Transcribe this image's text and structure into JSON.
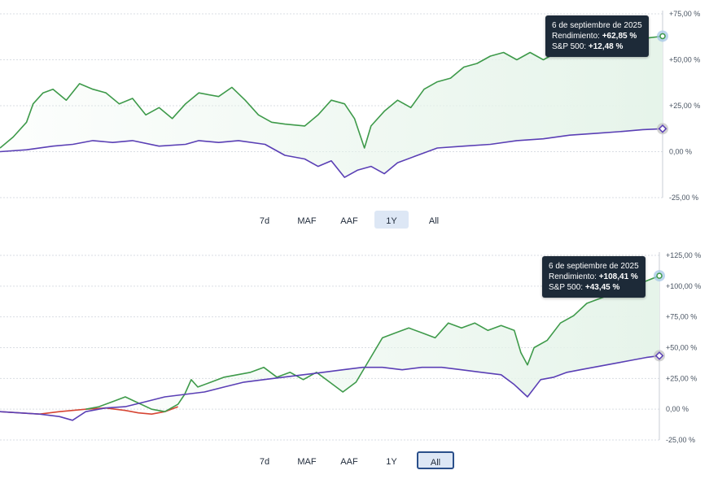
{
  "colors": {
    "portfolio": "#3e9a4a",
    "portfolio_negative": "#d64533",
    "benchmark": "#5a3fb5",
    "fill": "#e6f4ea",
    "grid": "#d9dde3",
    "tooltip_bg": "#1d2a38",
    "marker_portfolio": "#9fc3e6",
    "marker_benchmark": "#bfbfbf"
  },
  "chart_data": [
    {
      "type": "line",
      "x_range": [
        "2024-09-06",
        "2025-09-06"
      ],
      "ylim": [
        -25,
        75
      ],
      "yticks": [
        -25,
        0,
        25,
        50,
        75
      ],
      "ytick_labels": [
        "-25,00 %",
        "0,00 %",
        "+25,00 %",
        "+50,00 %",
        "+75,00 %"
      ],
      "grid": true,
      "series": [
        {
          "key": "portfolio",
          "points": [
            [
              0,
              2
            ],
            [
              0.02,
              8
            ],
            [
              0.04,
              16
            ],
            [
              0.05,
              26
            ],
            [
              0.065,
              32
            ],
            [
              0.08,
              34
            ],
            [
              0.1,
              28
            ],
            [
              0.12,
              37
            ],
            [
              0.14,
              34
            ],
            [
              0.16,
              32
            ],
            [
              0.18,
              26
            ],
            [
              0.2,
              29
            ],
            [
              0.22,
              20
            ],
            [
              0.24,
              24
            ],
            [
              0.26,
              18
            ],
            [
              0.28,
              26
            ],
            [
              0.3,
              32
            ],
            [
              0.33,
              30
            ],
            [
              0.35,
              35
            ],
            [
              0.37,
              28
            ],
            [
              0.39,
              20
            ],
            [
              0.41,
              16
            ],
            [
              0.43,
              15
            ],
            [
              0.46,
              14
            ],
            [
              0.48,
              20
            ],
            [
              0.5,
              28
            ],
            [
              0.52,
              26
            ],
            [
              0.535,
              18
            ],
            [
              0.55,
              2
            ],
            [
              0.56,
              14
            ],
            [
              0.58,
              22
            ],
            [
              0.6,
              28
            ],
            [
              0.62,
              24
            ],
            [
              0.64,
              34
            ],
            [
              0.66,
              38
            ],
            [
              0.68,
              40
            ],
            [
              0.7,
              46
            ],
            [
              0.72,
              48
            ],
            [
              0.74,
              52
            ],
            [
              0.76,
              54
            ],
            [
              0.78,
              50
            ],
            [
              0.8,
              54
            ],
            [
              0.82,
              50
            ],
            [
              0.84,
              54
            ],
            [
              0.86,
              52
            ],
            [
              0.88,
              56
            ],
            [
              0.9,
              58
            ],
            [
              0.92,
              60
            ],
            [
              0.94,
              58
            ],
            [
              0.96,
              60
            ],
            [
              0.98,
              62
            ],
            [
              1,
              62.85
            ]
          ]
        },
        {
          "key": "benchmark",
          "points": [
            [
              0,
              0
            ],
            [
              0.04,
              1
            ],
            [
              0.08,
              3
            ],
            [
              0.11,
              4
            ],
            [
              0.14,
              6
            ],
            [
              0.17,
              5
            ],
            [
              0.2,
              6
            ],
            [
              0.24,
              3
            ],
            [
              0.28,
              4
            ],
            [
              0.3,
              6
            ],
            [
              0.33,
              5
            ],
            [
              0.36,
              6
            ],
            [
              0.4,
              4
            ],
            [
              0.43,
              -2
            ],
            [
              0.46,
              -4
            ],
            [
              0.48,
              -8
            ],
            [
              0.5,
              -5
            ],
            [
              0.52,
              -14
            ],
            [
              0.54,
              -10
            ],
            [
              0.56,
              -8
            ],
            [
              0.58,
              -12
            ],
            [
              0.6,
              -6
            ],
            [
              0.63,
              -2
            ],
            [
              0.66,
              2
            ],
            [
              0.7,
              3
            ],
            [
              0.74,
              4
            ],
            [
              0.78,
              6
            ],
            [
              0.82,
              7
            ],
            [
              0.86,
              9
            ],
            [
              0.9,
              10
            ],
            [
              0.94,
              11
            ],
            [
              0.97,
              12
            ],
            [
              1,
              12.48
            ]
          ]
        }
      ],
      "tooltip": {
        "date": "6 de septiembre de 2025",
        "return_label": "Rendimiento:",
        "return_value": "+62,85 %",
        "benchmark_label": "S&P 500:",
        "benchmark_value": "+12,48 %"
      }
    },
    {
      "type": "line",
      "ylim": [
        -25,
        125
      ],
      "yticks": [
        -25,
        0,
        25,
        50,
        75,
        100,
        125
      ],
      "ytick_labels": [
        "-25,00 %",
        "0,00 %",
        "+25,00 %",
        "+50,00 %",
        "+75,00 %",
        "+100,00 %",
        "+125,00 %"
      ],
      "grid": true,
      "series": [
        {
          "key": "portfolio_negative",
          "points": [
            [
              0,
              -2
            ],
            [
              0.03,
              -3
            ],
            [
              0.06,
              -4
            ],
            [
              0.09,
              -2
            ],
            [
              0.11,
              -1
            ],
            [
              0.13,
              0
            ],
            [
              0.16,
              1
            ],
            [
              0.19,
              -1
            ],
            [
              0.21,
              -3
            ],
            [
              0.23,
              -4
            ],
            [
              0.25,
              -2
            ],
            [
              0.27,
              2
            ]
          ]
        },
        {
          "key": "portfolio",
          "points": [
            [
              0.13,
              0
            ],
            [
              0.15,
              2
            ],
            [
              0.17,
              6
            ],
            [
              0.19,
              10
            ],
            [
              0.21,
              5
            ],
            [
              0.23,
              0
            ],
            [
              0.25,
              -2
            ],
            [
              0.27,
              4
            ],
            [
              0.28,
              12
            ],
            [
              0.29,
              24
            ],
            [
              0.3,
              18
            ],
            [
              0.32,
              22
            ],
            [
              0.34,
              26
            ],
            [
              0.36,
              28
            ],
            [
              0.38,
              30
            ],
            [
              0.4,
              34
            ],
            [
              0.42,
              26
            ],
            [
              0.44,
              30
            ],
            [
              0.46,
              24
            ],
            [
              0.48,
              30
            ],
            [
              0.5,
              22
            ],
            [
              0.52,
              14
            ],
            [
              0.54,
              22
            ],
            [
              0.56,
              40
            ],
            [
              0.58,
              58
            ],
            [
              0.6,
              62
            ],
            [
              0.62,
              66
            ],
            [
              0.64,
              62
            ],
            [
              0.66,
              58
            ],
            [
              0.68,
              70
            ],
            [
              0.7,
              66
            ],
            [
              0.72,
              70
            ],
            [
              0.74,
              64
            ],
            [
              0.76,
              68
            ],
            [
              0.78,
              64
            ],
            [
              0.79,
              46
            ],
            [
              0.8,
              36
            ],
            [
              0.81,
              50
            ],
            [
              0.83,
              56
            ],
            [
              0.85,
              70
            ],
            [
              0.87,
              76
            ],
            [
              0.89,
              86
            ],
            [
              0.91,
              90
            ],
            [
              0.93,
              94
            ],
            [
              0.95,
              98
            ],
            [
              0.97,
              102
            ],
            [
              1,
              108.41
            ]
          ]
        },
        {
          "key": "benchmark",
          "points": [
            [
              0,
              -2
            ],
            [
              0.03,
              -3
            ],
            [
              0.06,
              -4
            ],
            [
              0.09,
              -6
            ],
            [
              0.11,
              -9
            ],
            [
              0.13,
              -2
            ],
            [
              0.16,
              1
            ],
            [
              0.19,
              2
            ],
            [
              0.22,
              6
            ],
            [
              0.25,
              10
            ],
            [
              0.28,
              12
            ],
            [
              0.31,
              14
            ],
            [
              0.34,
              18
            ],
            [
              0.37,
              22
            ],
            [
              0.4,
              24
            ],
            [
              0.43,
              26
            ],
            [
              0.46,
              28
            ],
            [
              0.49,
              30
            ],
            [
              0.52,
              32
            ],
            [
              0.55,
              34
            ],
            [
              0.58,
              34
            ],
            [
              0.61,
              32
            ],
            [
              0.64,
              34
            ],
            [
              0.67,
              34
            ],
            [
              0.7,
              32
            ],
            [
              0.73,
              30
            ],
            [
              0.76,
              28
            ],
            [
              0.78,
              20
            ],
            [
              0.8,
              10
            ],
            [
              0.82,
              24
            ],
            [
              0.84,
              26
            ],
            [
              0.86,
              30
            ],
            [
              0.88,
              32
            ],
            [
              0.9,
              34
            ],
            [
              0.92,
              36
            ],
            [
              0.94,
              38
            ],
            [
              0.96,
              40
            ],
            [
              0.98,
              42
            ],
            [
              1,
              43.45
            ]
          ]
        }
      ],
      "tooltip": {
        "date": "6 de septiembre de 2025",
        "return_label": "Rendimiento:",
        "return_value": "+108,41 %",
        "benchmark_label": "S&P 500:",
        "benchmark_value": "+43,45 %"
      }
    }
  ],
  "range_buttons_1": [
    "7d",
    "MAF",
    "AAF",
    "1Y",
    "All"
  ],
  "range_selected_1": "1Y",
  "range_buttons_2": [
    "7d",
    "MAF",
    "AAF",
    "1Y",
    "All"
  ],
  "range_selected_2": "All"
}
